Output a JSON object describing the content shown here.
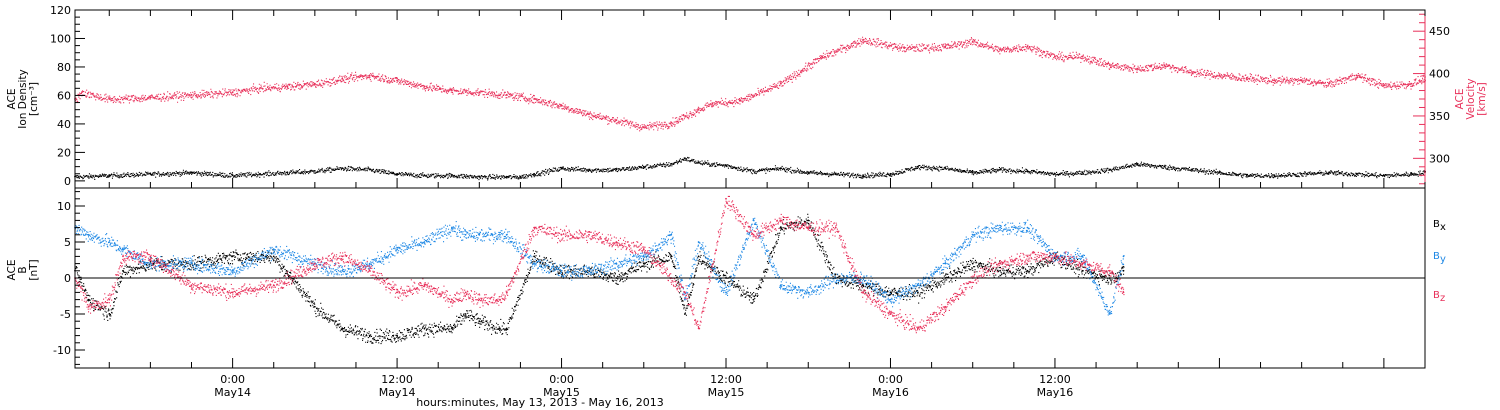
{
  "chart_data": [
    {
      "type": "scatter",
      "panel": "top",
      "x_range_hours": [
        -11.5,
        87
      ],
      "grid": false,
      "left_axis": {
        "title_lines": [
          "ACE",
          "Ion Density",
          "[cm⁻³]"
        ],
        "ylim": [
          -5,
          120
        ],
        "ticks": [
          0,
          20,
          40,
          60,
          80,
          100,
          120
        ],
        "color": "#000000"
      },
      "right_axis": {
        "title_lines": [
          "ACE",
          "Velocity",
          "[km/s]"
        ],
        "ylim": [
          265,
          475
        ],
        "ticks": [
          300,
          350,
          400,
          450
        ],
        "color": "#e8305a"
      },
      "series": [
        {
          "axis": "left",
          "color": "#000000",
          "x": [
            -11.5,
            -9,
            -6,
            -3,
            0,
            2,
            4,
            6,
            8,
            10,
            12,
            14,
            16,
            18,
            20,
            21,
            22,
            24,
            26,
            28,
            30,
            32,
            33,
            34,
            36,
            38,
            40,
            42,
            44,
            46,
            48,
            50,
            52,
            54,
            56,
            58,
            60,
            62,
            64,
            66,
            68,
            70,
            72,
            74,
            76,
            78,
            80,
            82,
            84,
            86,
            87
          ],
          "y": [
            3,
            4,
            5,
            6,
            4,
            5,
            6,
            7,
            9,
            8,
            5,
            4,
            4,
            3,
            3,
            3,
            5,
            9,
            8,
            8,
            10,
            12,
            16,
            13,
            11,
            7,
            9,
            6,
            5,
            4,
            5,
            10,
            9,
            6,
            8,
            7,
            5,
            6,
            8,
            12,
            10,
            8,
            6,
            4,
            4,
            5,
            6,
            5,
            4,
            5,
            6
          ]
        },
        {
          "axis": "right",
          "color": "#e8305a",
          "x": [
            -11.5,
            -11,
            -9,
            -6,
            -3,
            0,
            2,
            4,
            6,
            8,
            10,
            12,
            14,
            16,
            18,
            20,
            22,
            24,
            26,
            28,
            30,
            32,
            34,
            35,
            37,
            40,
            43,
            46,
            49,
            52,
            54,
            56,
            58,
            60,
            62,
            64,
            66,
            68,
            70,
            72,
            74,
            76,
            78,
            80,
            82,
            84,
            86,
            87
          ],
          "y": [
            370,
            378,
            370,
            372,
            375,
            378,
            383,
            385,
            388,
            394,
            398,
            392,
            385,
            380,
            378,
            375,
            370,
            362,
            352,
            345,
            337,
            342,
            358,
            365,
            368,
            388,
            420,
            440,
            430,
            432,
            438,
            428,
            432,
            420,
            420,
            410,
            406,
            410,
            402,
            398,
            395,
            392,
            392,
            388,
            398,
            386,
            388,
            396
          ]
        }
      ]
    },
    {
      "type": "scatter",
      "panel": "bottom",
      "x_range_hours": [
        -11.5,
        87
      ],
      "grid": false,
      "zero_line": true,
      "left_axis": {
        "title_lines": [
          "ACE",
          "B",
          "[nT]"
        ],
        "ylim": [
          -12.5,
          12.5
        ],
        "ticks": [
          -10,
          -5,
          0,
          5,
          10
        ],
        "color": "#000000"
      },
      "x_ticks": [
        {
          "hours": 0,
          "line1": "0:00",
          "line2": "May14"
        },
        {
          "hours": 12,
          "line1": "12:00",
          "line2": "May14"
        },
        {
          "hours": 24,
          "line1": "0:00",
          "line2": "May15"
        },
        {
          "hours": 36,
          "line1": "12:00",
          "line2": "May15"
        },
        {
          "hours": 48,
          "line1": "0:00",
          "line2": "May16"
        },
        {
          "hours": 60,
          "line1": "12:00",
          "line2": "May16"
        }
      ],
      "xlabel": "hours:minutes, May 13, 2013 - May 16, 2013",
      "series": [
        {
          "name": "Bx",
          "label_main": "B",
          "label_sub": "x",
          "color": "#000000",
          "x": [
            -11.5,
            -10.5,
            -9,
            -8,
            -6,
            -3,
            0,
            3,
            6,
            8,
            10,
            12,
            14,
            16,
            17,
            18,
            19.5,
            20,
            22,
            24,
            26,
            28,
            30,
            32,
            33,
            34,
            36,
            38,
            40,
            42,
            44,
            46,
            48,
            50,
            52,
            54,
            56,
            58,
            60,
            62,
            64,
            65
          ],
          "y": [
            1,
            -3,
            -5,
            1,
            2,
            2,
            3,
            3,
            -4,
            -7,
            -8,
            -8,
            -7,
            -7,
            -5,
            -6,
            -7,
            -7,
            3,
            1,
            1,
            0,
            2,
            3,
            -5,
            3,
            0,
            -3,
            7,
            8,
            0,
            -1,
            -2,
            -2,
            0,
            2,
            1,
            1,
            3,
            1,
            0,
            1
          ]
        },
        {
          "name": "By",
          "label_main": "B",
          "label_sub": "y",
          "color": "#1e88e5",
          "x": [
            -11.5,
            -10.5,
            -9,
            -8,
            -6,
            -3,
            0,
            3,
            6,
            8,
            10,
            12,
            14,
            16,
            17,
            18,
            19.5,
            20,
            22,
            24,
            26,
            28,
            30,
            32,
            33,
            34,
            36,
            38,
            40,
            42,
            44,
            46,
            48,
            50,
            52,
            54,
            56,
            58,
            60,
            62,
            64,
            65
          ],
          "y": [
            7,
            6,
            5,
            4,
            2,
            2,
            1,
            4,
            2,
            1,
            2,
            4,
            5,
            7,
            6,
            6,
            6,
            6,
            2,
            1,
            1,
            2,
            3,
            6,
            -3,
            5,
            -2,
            8,
            -1,
            -2,
            0,
            0,
            -3,
            -1,
            2,
            6,
            7,
            7,
            3,
            3,
            -5,
            3
          ]
        },
        {
          "name": "Bz",
          "label_main": "B",
          "label_sub": "z",
          "color": "#e8305a",
          "x": [
            -11.5,
            -10.5,
            -9,
            -8,
            -6,
            -3,
            0,
            3,
            6,
            8,
            10,
            12,
            14,
            16,
            17,
            18,
            19.5,
            20,
            22,
            24,
            26,
            28,
            30,
            32,
            33,
            34,
            36,
            38,
            40,
            42,
            44,
            46,
            48,
            50,
            52,
            54,
            56,
            58,
            60,
            62,
            64,
            65
          ],
          "y": [
            0,
            -4,
            -3,
            3,
            3,
            -1,
            -2,
            -1,
            2,
            3,
            1,
            -2,
            -1,
            -3,
            -2,
            -3,
            -3,
            -2,
            7,
            6,
            6,
            5,
            4,
            0,
            -2,
            -7,
            11,
            6,
            8,
            7,
            7,
            -2,
            -5,
            -7,
            -4,
            0,
            2,
            3,
            3,
            2,
            1,
            -2
          ]
        }
      ]
    }
  ]
}
